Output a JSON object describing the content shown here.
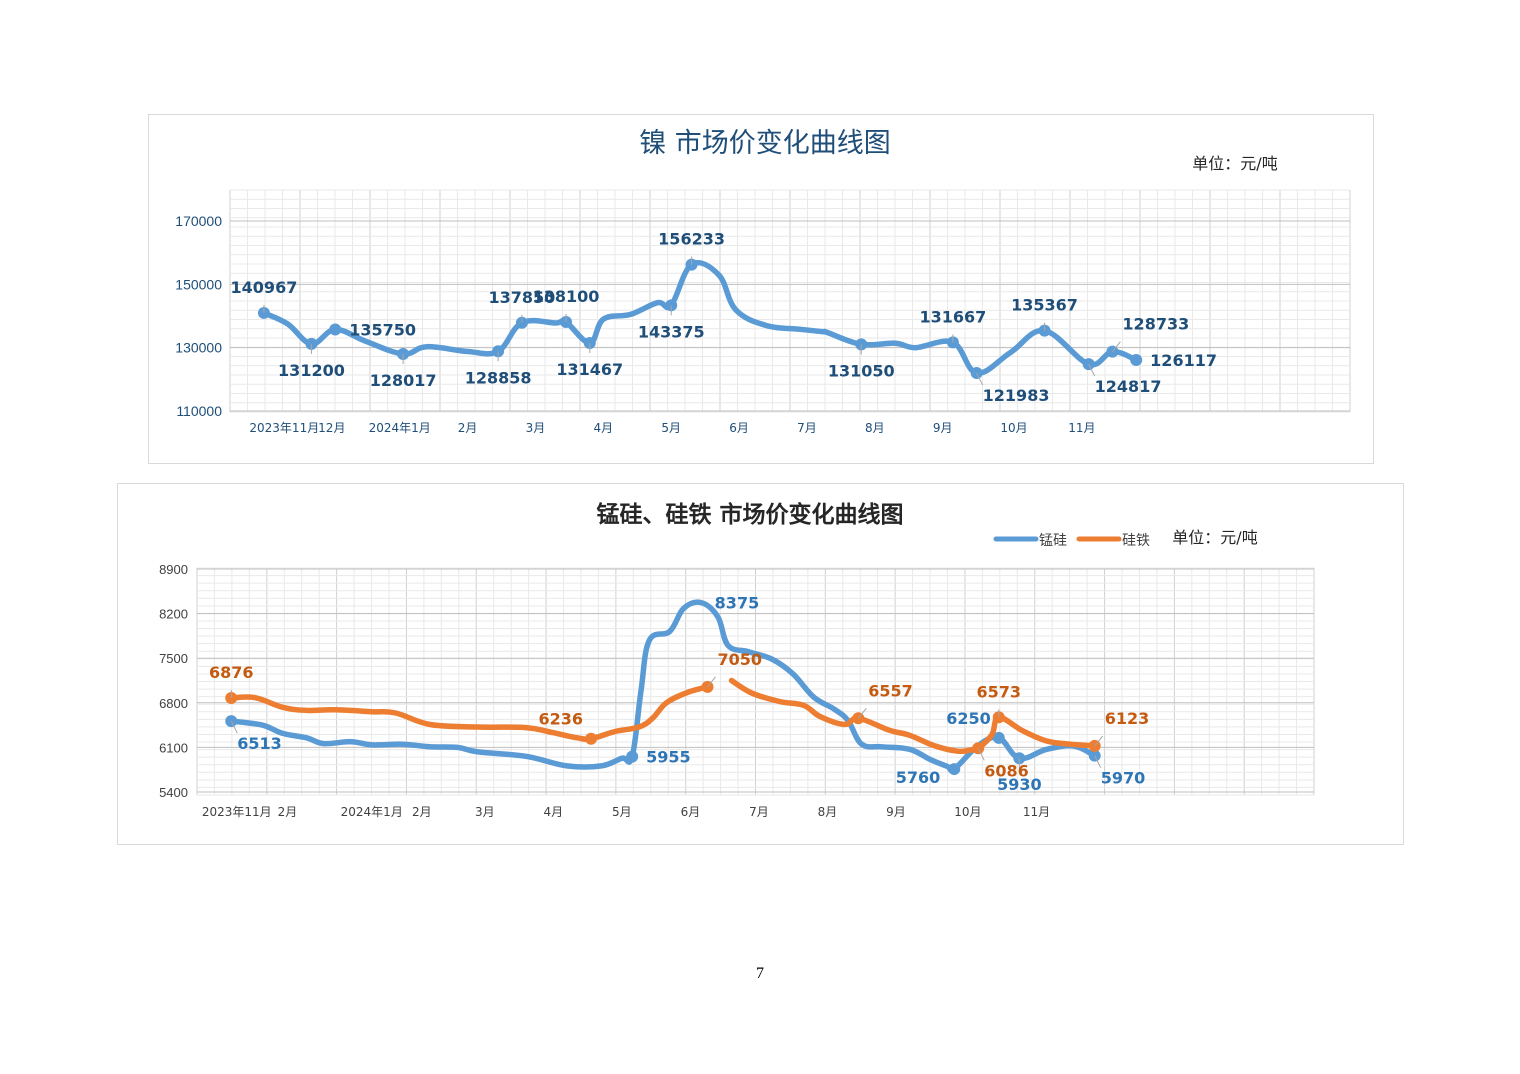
{
  "page_number": "7",
  "chart_data": [
    {
      "type": "line",
      "title": "镍  市场价变化曲线图",
      "unit_label": "单位：元/吨",
      "ylim": [
        110000,
        170000
      ],
      "yticks": [
        "110000",
        "130000",
        "150000",
        "170000"
      ],
      "month_labels": [
        {
          "label": "2023年11月",
          "x": 0.3
        },
        {
          "label": "12月",
          "x": 1.0
        },
        {
          "label": "2024年1月",
          "x": 2.0
        },
        {
          "label": "2月",
          "x": 3.0
        },
        {
          "label": "3月",
          "x": 4.0
        },
        {
          "label": "4月",
          "x": 5.0
        },
        {
          "label": "5月",
          "x": 6.0
        },
        {
          "label": "6月",
          "x": 7.0
        },
        {
          "label": "7月",
          "x": 8.0
        },
        {
          "label": "8月",
          "x": 9.0
        },
        {
          "label": "9月",
          "x": 10.0
        },
        {
          "label": "10月",
          "x": 11.05
        },
        {
          "label": "11月",
          "x": 12.05
        }
      ],
      "x_range": [
        -0.5,
        16.0
      ],
      "grid": true,
      "series": [
        {
          "color": "#5b9bd5",
          "points": [
            {
              "x": 0.0,
              "y": 140967,
              "marker": true,
              "label": "140967",
              "lpos": "above"
            },
            {
              "x": 0.35,
              "y": 137500
            },
            {
              "x": 0.7,
              "y": 131200,
              "marker": true,
              "label": "131200",
              "lpos": "below"
            },
            {
              "x": 1.05,
              "y": 135750,
              "marker": true,
              "label": "135750",
              "lpos": "right"
            },
            {
              "x": 1.5,
              "y": 132000
            },
            {
              "x": 2.05,
              "y": 128017,
              "marker": true,
              "label": "128017",
              "lpos": "below"
            },
            {
              "x": 2.4,
              "y": 130300
            },
            {
              "x": 3.0,
              "y": 128800
            },
            {
              "x": 3.45,
              "y": 128858,
              "marker": true,
              "label": "128858",
              "lpos": "below"
            },
            {
              "x": 3.8,
              "y": 137850,
              "marker": true,
              "label": "137850",
              "lpos": "above"
            },
            {
              "x": 4.3,
              "y": 137800
            },
            {
              "x": 4.45,
              "y": 138100,
              "marker": true,
              "label": "138100",
              "lpos": "above"
            },
            {
              "x": 4.8,
              "y": 131467,
              "marker": true,
              "label": "131467",
              "lpos": "below"
            },
            {
              "x": 5.0,
              "y": 139000
            },
            {
              "x": 5.4,
              "y": 140500
            },
            {
              "x": 5.8,
              "y": 144200
            },
            {
              "x": 6.0,
              "y": 143375,
              "marker": true,
              "label": "143375",
              "lpos": "below"
            },
            {
              "x": 6.3,
              "y": 156233,
              "marker": true,
              "label": "156233",
              "lpos": "above"
            },
            {
              "x": 6.7,
              "y": 153000
            },
            {
              "x": 6.95,
              "y": 142000
            },
            {
              "x": 7.4,
              "y": 137000
            },
            {
              "x": 7.9,
              "y": 135800
            },
            {
              "x": 8.25,
              "y": 135000
            },
            {
              "x": 8.3,
              "y": 134800
            },
            {
              "x": 8.8,
              "y": 131050,
              "marker": true,
              "label": "131050",
              "lpos": "below"
            },
            {
              "x": 9.3,
              "y": 131400
            },
            {
              "x": 9.6,
              "y": 130000
            },
            {
              "x": 10.15,
              "y": 131667,
              "marker": true,
              "label": "131667",
              "lpos": "above"
            },
            {
              "x": 10.5,
              "y": 121983,
              "marker": true,
              "label": "121983",
              "lpos": "belowright"
            },
            {
              "x": 11.0,
              "y": 128500
            },
            {
              "x": 11.5,
              "y": 135367,
              "marker": true,
              "label": "135367",
              "lpos": "above"
            },
            {
              "x": 12.15,
              "y": 124817,
              "marker": true,
              "label": "124817",
              "lpos": "belowright"
            },
            {
              "x": 12.5,
              "y": 128733,
              "marker": true,
              "label": "128733",
              "lpos": "aboveright"
            },
            {
              "x": 12.85,
              "y": 126117,
              "marker": true,
              "label": "126117",
              "lpos": "right"
            }
          ]
        }
      ]
    },
    {
      "type": "line",
      "title": "锰硅、硅铁  市场价变化曲线图",
      "unit_label": "单位：元/吨",
      "ylim": [
        5400,
        8900
      ],
      "yticks": [
        "5400",
        "6100",
        "6800",
        "7500",
        "8200",
        "8900"
      ],
      "month_labels": [
        {
          "label": "2023年11月",
          "x": 0.08
        },
        {
          "label": "2月",
          "x": 0.82
        },
        {
          "label": "2024年1月",
          "x": 2.05
        },
        {
          "label": "2月",
          "x": 2.78
        },
        {
          "label": "3月",
          "x": 3.7
        },
        {
          "label": "4月",
          "x": 4.7
        },
        {
          "label": "5月",
          "x": 5.7
        },
        {
          "label": "6月",
          "x": 6.7
        },
        {
          "label": "7月",
          "x": 7.7
        },
        {
          "label": "8月",
          "x": 8.7
        },
        {
          "label": "9月",
          "x": 9.7
        },
        {
          "label": "10月",
          "x": 10.75
        },
        {
          "label": "11月",
          "x": 11.75
        }
      ],
      "x_range": [
        -0.5,
        15.8
      ],
      "grid": true,
      "legend": "top-right",
      "series": [
        {
          "name": "锰硅",
          "color": "#5b9bd5",
          "segments": [
            [
              {
                "x": 0.0,
                "y": 6513,
                "marker": true,
                "label": "6513",
                "lpos": "belowright"
              },
              {
                "x": 0.45,
                "y": 6450
              },
              {
                "x": 0.75,
                "y": 6320
              },
              {
                "x": 1.1,
                "y": 6250
              },
              {
                "x": 1.35,
                "y": 6160
              },
              {
                "x": 1.75,
                "y": 6190
              },
              {
                "x": 2.05,
                "y": 6140
              },
              {
                "x": 2.5,
                "y": 6150
              },
              {
                "x": 2.9,
                "y": 6110
              },
              {
                "x": 3.3,
                "y": 6100
              },
              {
                "x": 3.6,
                "y": 6030
              },
              {
                "x": 4.3,
                "y": 5960
              },
              {
                "x": 4.9,
                "y": 5810
              },
              {
                "x": 5.4,
                "y": 5810
              },
              {
                "x": 5.7,
                "y": 5930
              },
              {
                "x": 5.85,
                "y": 5955,
                "marker": true,
                "label": "5955",
                "lpos": "right"
              },
              {
                "x": 5.98,
                "y": 7000
              },
              {
                "x": 6.1,
                "y": 7780
              },
              {
                "x": 6.4,
                "y": 7920
              },
              {
                "x": 6.6,
                "y": 8280
              },
              {
                "x": 6.85,
                "y": 8375,
                "label": "8375",
                "lpos": "right"
              },
              {
                "x": 7.1,
                "y": 8150
              },
              {
                "x": 7.25,
                "y": 7700
              },
              {
                "x": 7.55,
                "y": 7600
              },
              {
                "x": 7.9,
                "y": 7480
              },
              {
                "x": 8.2,
                "y": 7250
              },
              {
                "x": 8.5,
                "y": 6890
              },
              {
                "x": 8.8,
                "y": 6700
              },
              {
                "x": 9.0,
                "y": 6520
              },
              {
                "x": 9.2,
                "y": 6150
              },
              {
                "x": 9.5,
                "y": 6110
              },
              {
                "x": 9.9,
                "y": 6070
              },
              {
                "x": 10.2,
                "y": 5910
              },
              {
                "x": 10.45,
                "y": 5800
              },
              {
                "x": 10.55,
                "y": 5760,
                "marker": true,
                "label": "5760",
                "lpos": "left"
              },
              {
                "x": 10.9,
                "y": 6130
              },
              {
                "x": 11.2,
                "y": 6250,
                "marker": true,
                "label": "6250",
                "lpos": "aboveleft"
              },
              {
                "x": 11.5,
                "y": 5930,
                "marker": true,
                "label": "5930",
                "lpos": "below"
              },
              {
                "x": 11.9,
                "y": 6070
              },
              {
                "x": 12.3,
                "y": 6120
              },
              {
                "x": 12.6,
                "y": 5970,
                "marker": true,
                "label": "5970",
                "lpos": "belowright"
              }
            ]
          ]
        },
        {
          "name": "硅铁",
          "color": "#ed7d31",
          "segments": [
            [
              {
                "x": 0.0,
                "y": 6876,
                "marker": true,
                "label": "6876",
                "lpos": "above"
              },
              {
                "x": 0.35,
                "y": 6880
              },
              {
                "x": 0.75,
                "y": 6730
              },
              {
                "x": 1.1,
                "y": 6680
              },
              {
                "x": 1.5,
                "y": 6690
              },
              {
                "x": 2.05,
                "y": 6660
              },
              {
                "x": 2.4,
                "y": 6640
              },
              {
                "x": 2.9,
                "y": 6460
              },
              {
                "x": 3.6,
                "y": 6420
              },
              {
                "x": 4.3,
                "y": 6410
              },
              {
                "x": 4.7,
                "y": 6330
              },
              {
                "x": 5.05,
                "y": 6250
              },
              {
                "x": 5.25,
                "y": 6236,
                "marker": true,
                "label": "6236",
                "lpos": "aboveleft"
              },
              {
                "x": 5.6,
                "y": 6350
              },
              {
                "x": 5.95,
                "y": 6420
              },
              {
                "x": 6.15,
                "y": 6560
              },
              {
                "x": 6.35,
                "y": 6800
              },
              {
                "x": 6.65,
                "y": 6960
              },
              {
                "x": 6.95,
                "y": 7050,
                "marker": true,
                "label": "7050",
                "lpos": "aboveright"
              }
            ],
            [
              {
                "x": 7.3,
                "y": 7150
              },
              {
                "x": 7.6,
                "y": 6950
              },
              {
                "x": 8.0,
                "y": 6820
              },
              {
                "x": 8.35,
                "y": 6760
              },
              {
                "x": 8.6,
                "y": 6580
              },
              {
                "x": 8.95,
                "y": 6460
              },
              {
                "x": 9.15,
                "y": 6557,
                "marker": true,
                "label": "6557",
                "lpos": "aboveright"
              },
              {
                "x": 9.6,
                "y": 6370
              },
              {
                "x": 9.9,
                "y": 6290
              },
              {
                "x": 10.25,
                "y": 6130
              },
              {
                "x": 10.6,
                "y": 6040
              },
              {
                "x": 10.8,
                "y": 6060
              },
              {
                "x": 10.9,
                "y": 6086,
                "marker": true,
                "label": "6086",
                "lpos": "belowright"
              },
              {
                "x": 11.1,
                "y": 6300
              },
              {
                "x": 11.2,
                "y": 6573,
                "marker": true,
                "label": "6573",
                "lpos": "above"
              },
              {
                "x": 11.55,
                "y": 6360
              },
              {
                "x": 11.9,
                "y": 6200
              },
              {
                "x": 12.25,
                "y": 6150
              },
              {
                "x": 12.6,
                "y": 6123,
                "marker": true,
                "label": "6123",
                "lpos": "aboveright"
              }
            ]
          ]
        }
      ]
    }
  ]
}
